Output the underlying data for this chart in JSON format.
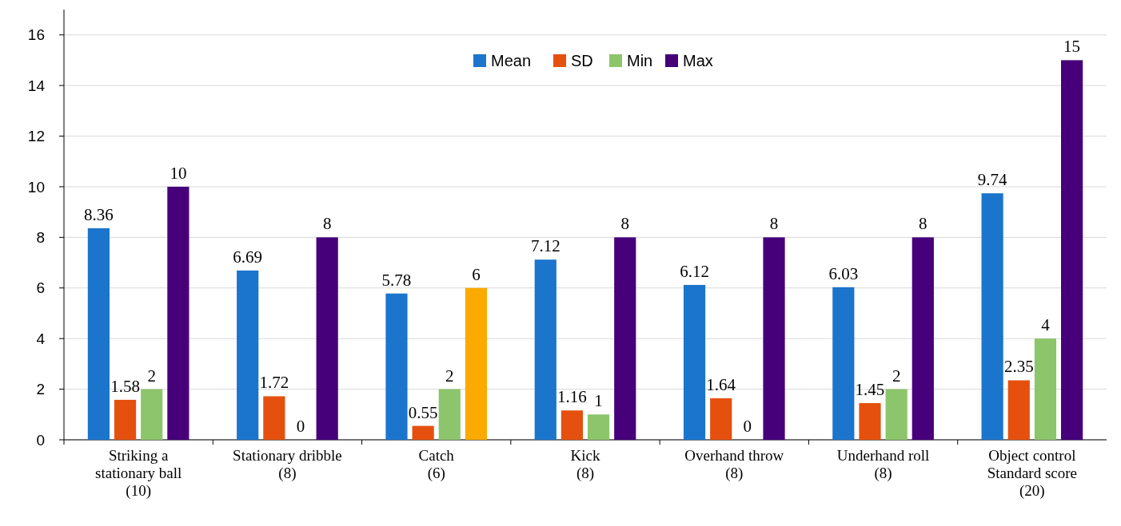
{
  "chart_data": {
    "type": "bar",
    "categories": [
      "Striking a\nstationary ball\n(10)",
      "Stationary dribble\n(8)",
      "Catch\n(6)",
      "Kick\n(8)",
      "Overhand throw\n(8)",
      "Underhand roll\n(8)",
      "Object control\nStandard score\n(20)"
    ],
    "series": [
      {
        "name": "Mean",
        "color": "#1b75cc",
        "values": [
          8.36,
          6.69,
          5.78,
          7.12,
          6.12,
          6.03,
          9.74
        ]
      },
      {
        "name": "SD",
        "color": "#e5500f",
        "values": [
          1.58,
          1.72,
          0.55,
          1.16,
          1.64,
          1.45,
          2.35
        ]
      },
      {
        "name": "Min",
        "color": "#8cc56b",
        "values": [
          2,
          0,
          2,
          1,
          0,
          2,
          4
        ]
      },
      {
        "name": "Max",
        "color": "#45007a",
        "colors": [
          "#45007a",
          "#45007a",
          "#fbaa00",
          "#45007a",
          "#45007a",
          "#45007a",
          "#45007a"
        ],
        "values": [
          10,
          8,
          6,
          8,
          8,
          8,
          15
        ]
      }
    ],
    "ylim": [
      0,
      17
    ],
    "yticks": [
      0,
      2,
      4,
      6,
      8,
      10,
      12,
      14,
      16
    ],
    "grid": "y",
    "legend": "top",
    "data_labels": true
  }
}
